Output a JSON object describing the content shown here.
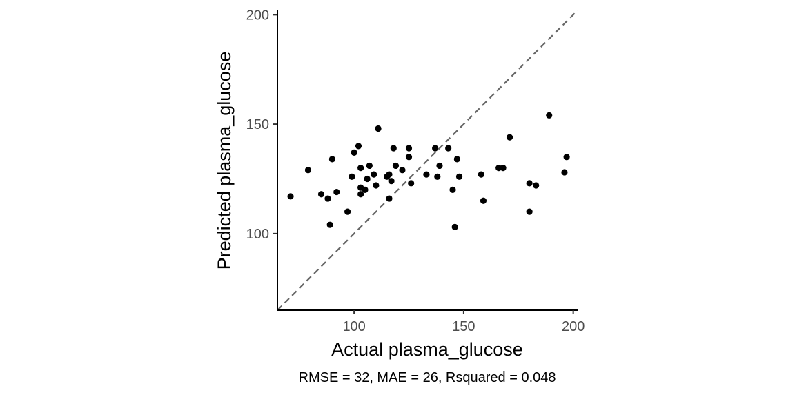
{
  "chart_data": {
    "type": "scatter",
    "title": "",
    "xlabel": "Actual  plasma_glucose",
    "ylabel": "Predicted  plasma_glucose",
    "caption": "RMSE = 32, MAE = 26, Rsquared = 0.048",
    "xlim": [
      65,
      202
    ],
    "ylim": [
      65,
      202
    ],
    "xticks": [
      100,
      150,
      200
    ],
    "yticks": [
      100,
      150,
      200
    ],
    "xtick_labels": [
      "100",
      "150",
      "200"
    ],
    "ytick_labels": [
      "100",
      "150",
      "200"
    ],
    "grid": false,
    "reference_line": {
      "type": "identity",
      "style": "dashed",
      "color": "#666666"
    },
    "point_color": "#000000",
    "points": [
      {
        "x": 71,
        "y": 117
      },
      {
        "x": 79,
        "y": 129
      },
      {
        "x": 85,
        "y": 118
      },
      {
        "x": 88,
        "y": 116
      },
      {
        "x": 89,
        "y": 104
      },
      {
        "x": 90,
        "y": 134
      },
      {
        "x": 92,
        "y": 119
      },
      {
        "x": 97,
        "y": 110
      },
      {
        "x": 99,
        "y": 126
      },
      {
        "x": 100,
        "y": 137
      },
      {
        "x": 102,
        "y": 140
      },
      {
        "x": 103,
        "y": 130
      },
      {
        "x": 103,
        "y": 121
      },
      {
        "x": 103,
        "y": 118
      },
      {
        "x": 105,
        "y": 120
      },
      {
        "x": 106,
        "y": 125
      },
      {
        "x": 107,
        "y": 131
      },
      {
        "x": 109,
        "y": 127
      },
      {
        "x": 110,
        "y": 122
      },
      {
        "x": 111,
        "y": 148
      },
      {
        "x": 115,
        "y": 126
      },
      {
        "x": 116,
        "y": 127
      },
      {
        "x": 116,
        "y": 116
      },
      {
        "x": 117,
        "y": 124
      },
      {
        "x": 118,
        "y": 139
      },
      {
        "x": 119,
        "y": 131
      },
      {
        "x": 122,
        "y": 129
      },
      {
        "x": 125,
        "y": 139
      },
      {
        "x": 125,
        "y": 135
      },
      {
        "x": 126,
        "y": 123
      },
      {
        "x": 133,
        "y": 127
      },
      {
        "x": 137,
        "y": 139
      },
      {
        "x": 138,
        "y": 126
      },
      {
        "x": 139,
        "y": 131
      },
      {
        "x": 143,
        "y": 139
      },
      {
        "x": 145,
        "y": 120
      },
      {
        "x": 146,
        "y": 103
      },
      {
        "x": 147,
        "y": 134
      },
      {
        "x": 148,
        "y": 126
      },
      {
        "x": 158,
        "y": 127
      },
      {
        "x": 159,
        "y": 115
      },
      {
        "x": 166,
        "y": 130
      },
      {
        "x": 168,
        "y": 130
      },
      {
        "x": 171,
        "y": 144
      },
      {
        "x": 180,
        "y": 123
      },
      {
        "x": 180,
        "y": 110
      },
      {
        "x": 183,
        "y": 122
      },
      {
        "x": 189,
        "y": 154
      },
      {
        "x": 196,
        "y": 128
      },
      {
        "x": 197,
        "y": 135
      }
    ]
  }
}
